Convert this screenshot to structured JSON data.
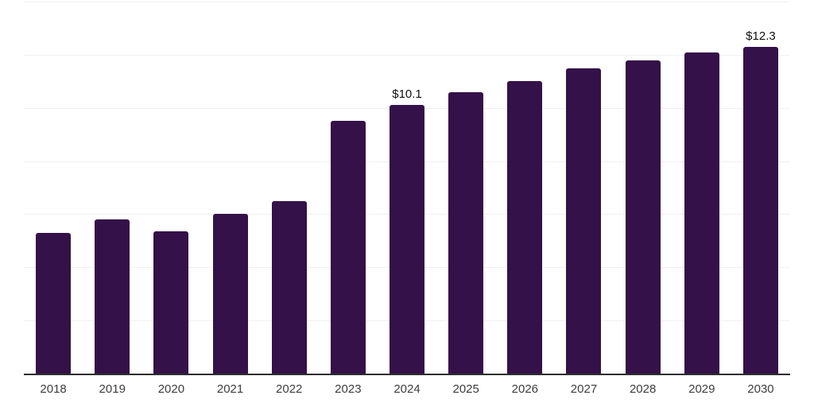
{
  "chart_data": {
    "type": "bar",
    "title": "",
    "xlabel": "",
    "ylabel": "",
    "categories": [
      "2018",
      "2019",
      "2020",
      "2021",
      "2022",
      "2023",
      "2024",
      "2025",
      "2026",
      "2027",
      "2028",
      "2029",
      "2030"
    ],
    "values": [
      5.3,
      5.8,
      5.35,
      6.0,
      6.5,
      9.5,
      10.1,
      10.6,
      11.0,
      11.5,
      11.8,
      12.1,
      12.3
    ],
    "bar_labels": [
      "",
      "",
      "",
      "",
      "",
      "",
      "$10.1",
      "",
      "",
      "",
      "",
      "",
      "$12.3"
    ],
    "ylim": [
      0,
      14
    ],
    "gridline_step": 2,
    "grid": true,
    "legend": "none",
    "y_tick_labels_shown": false,
    "colors": {
      "bar": "#341148",
      "gridline": "#f1eff2",
      "axis_line": "#2e2e2e",
      "tick_label": "#3d3d3d",
      "data_label": "#111111",
      "background": "#ffffff"
    }
  }
}
